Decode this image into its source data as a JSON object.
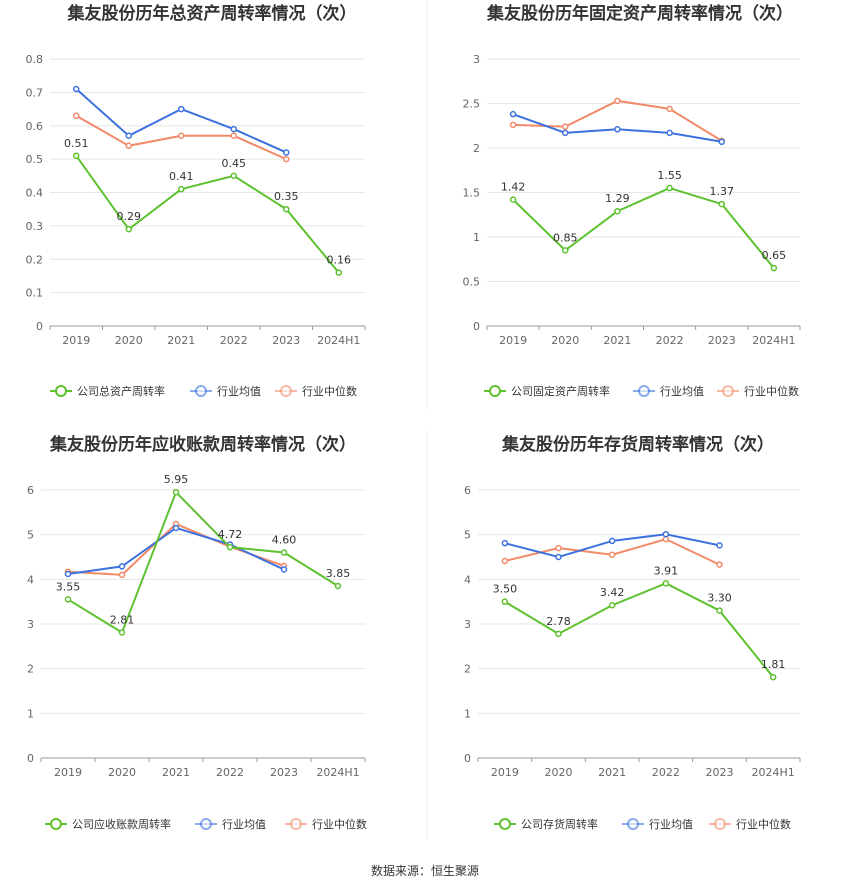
{
  "source_text": "数据来源：恒生聚源",
  "colors": {
    "company": "#5ec12f",
    "avg": "#3d72de",
    "median": "#f28a6a",
    "grid": "#e6e6e6",
    "axis": "#999999"
  },
  "chart_data": [
    {
      "type": "line",
      "title": "集友股份历年总资产周转率情况（次）",
      "categories": [
        "2019",
        "2020",
        "2021",
        "2022",
        "2023",
        "2024H1"
      ],
      "yticks": [
        "0",
        "0.1",
        "0.2",
        "0.3",
        "0.4",
        "0.5",
        "0.6",
        "0.7",
        "0.8"
      ],
      "ylim": [
        0,
        0.8
      ],
      "series": [
        {
          "name": "公司总资产周转率",
          "role": "company",
          "values": [
            0.51,
            0.29,
            0.41,
            0.45,
            0.35,
            0.16
          ],
          "labels": [
            "0.51",
            "0.29",
            "0.41",
            "0.45",
            "0.35",
            "0.16"
          ]
        },
        {
          "name": "行业均值",
          "role": "avg",
          "values": [
            0.71,
            0.57,
            0.65,
            0.59,
            0.52,
            null
          ]
        },
        {
          "name": "行业中位数",
          "role": "median",
          "values": [
            0.63,
            0.54,
            0.57,
            0.57,
            0.5,
            null
          ]
        }
      ],
      "legend": "bottom"
    },
    {
      "type": "line",
      "title": "集友股份历年固定资产周转率情况（次）",
      "categories": [
        "2019",
        "2020",
        "2021",
        "2022",
        "2023",
        "2024H1"
      ],
      "yticks": [
        "0",
        "0.5",
        "1",
        "1.5",
        "2",
        "2.5",
        "3"
      ],
      "ylim": [
        0,
        3
      ],
      "series": [
        {
          "name": "公司固定资产周转率",
          "role": "company",
          "values": [
            1.42,
            0.85,
            1.29,
            1.55,
            1.37,
            0.65
          ],
          "labels": [
            "1.42",
            "0.85",
            "1.29",
            "1.55",
            "1.37",
            "0.65"
          ]
        },
        {
          "name": "行业均值",
          "role": "avg",
          "values": [
            2.38,
            2.17,
            2.21,
            2.17,
            2.07,
            null
          ]
        },
        {
          "name": "行业中位数",
          "role": "median",
          "values": [
            2.26,
            2.24,
            2.53,
            2.44,
            2.08,
            null
          ]
        }
      ],
      "legend": "bottom"
    },
    {
      "type": "line",
      "title": "集友股份历年应收账款周转率情况（次）",
      "categories": [
        "2019",
        "2020",
        "2021",
        "2022",
        "2023",
        "2024H1"
      ],
      "yticks": [
        "0",
        "1",
        "2",
        "3",
        "4",
        "5",
        "6"
      ],
      "ylim": [
        0,
        6
      ],
      "series": [
        {
          "name": "公司应收账款周转率",
          "role": "company",
          "values": [
            3.55,
            2.81,
            5.95,
            4.72,
            4.6,
            3.85
          ],
          "labels": [
            "3.55",
            "2.81",
            "5.95",
            "4.72",
            "4.60",
            "3.85"
          ]
        },
        {
          "name": "行业均值",
          "role": "avg",
          "values": [
            4.12,
            4.29,
            5.15,
            4.78,
            4.22,
            null
          ]
        },
        {
          "name": "行业中位数",
          "role": "median",
          "values": [
            4.17,
            4.1,
            5.24,
            4.73,
            4.3,
            null
          ]
        }
      ],
      "legend": "bottom"
    },
    {
      "type": "line",
      "title": "集友股份历年存货周转率情况（次）",
      "categories": [
        "2019",
        "2020",
        "2021",
        "2022",
        "2023",
        "2024H1"
      ],
      "yticks": [
        "0",
        "1",
        "2",
        "3",
        "4",
        "5",
        "6"
      ],
      "ylim": [
        0,
        6
      ],
      "series": [
        {
          "name": "公司存货周转率",
          "role": "company",
          "values": [
            3.5,
            2.78,
            3.42,
            3.91,
            3.3,
            1.81
          ],
          "labels": [
            "3.50",
            "2.78",
            "3.42",
            "3.91",
            "3.30",
            "1.81"
          ]
        },
        {
          "name": "行业均值",
          "role": "avg",
          "values": [
            4.81,
            4.5,
            4.86,
            5.01,
            4.76,
            null
          ]
        },
        {
          "name": "行业中位数",
          "role": "median",
          "values": [
            4.41,
            4.7,
            4.55,
            4.9,
            4.33,
            null
          ]
        }
      ],
      "legend": "bottom"
    }
  ]
}
